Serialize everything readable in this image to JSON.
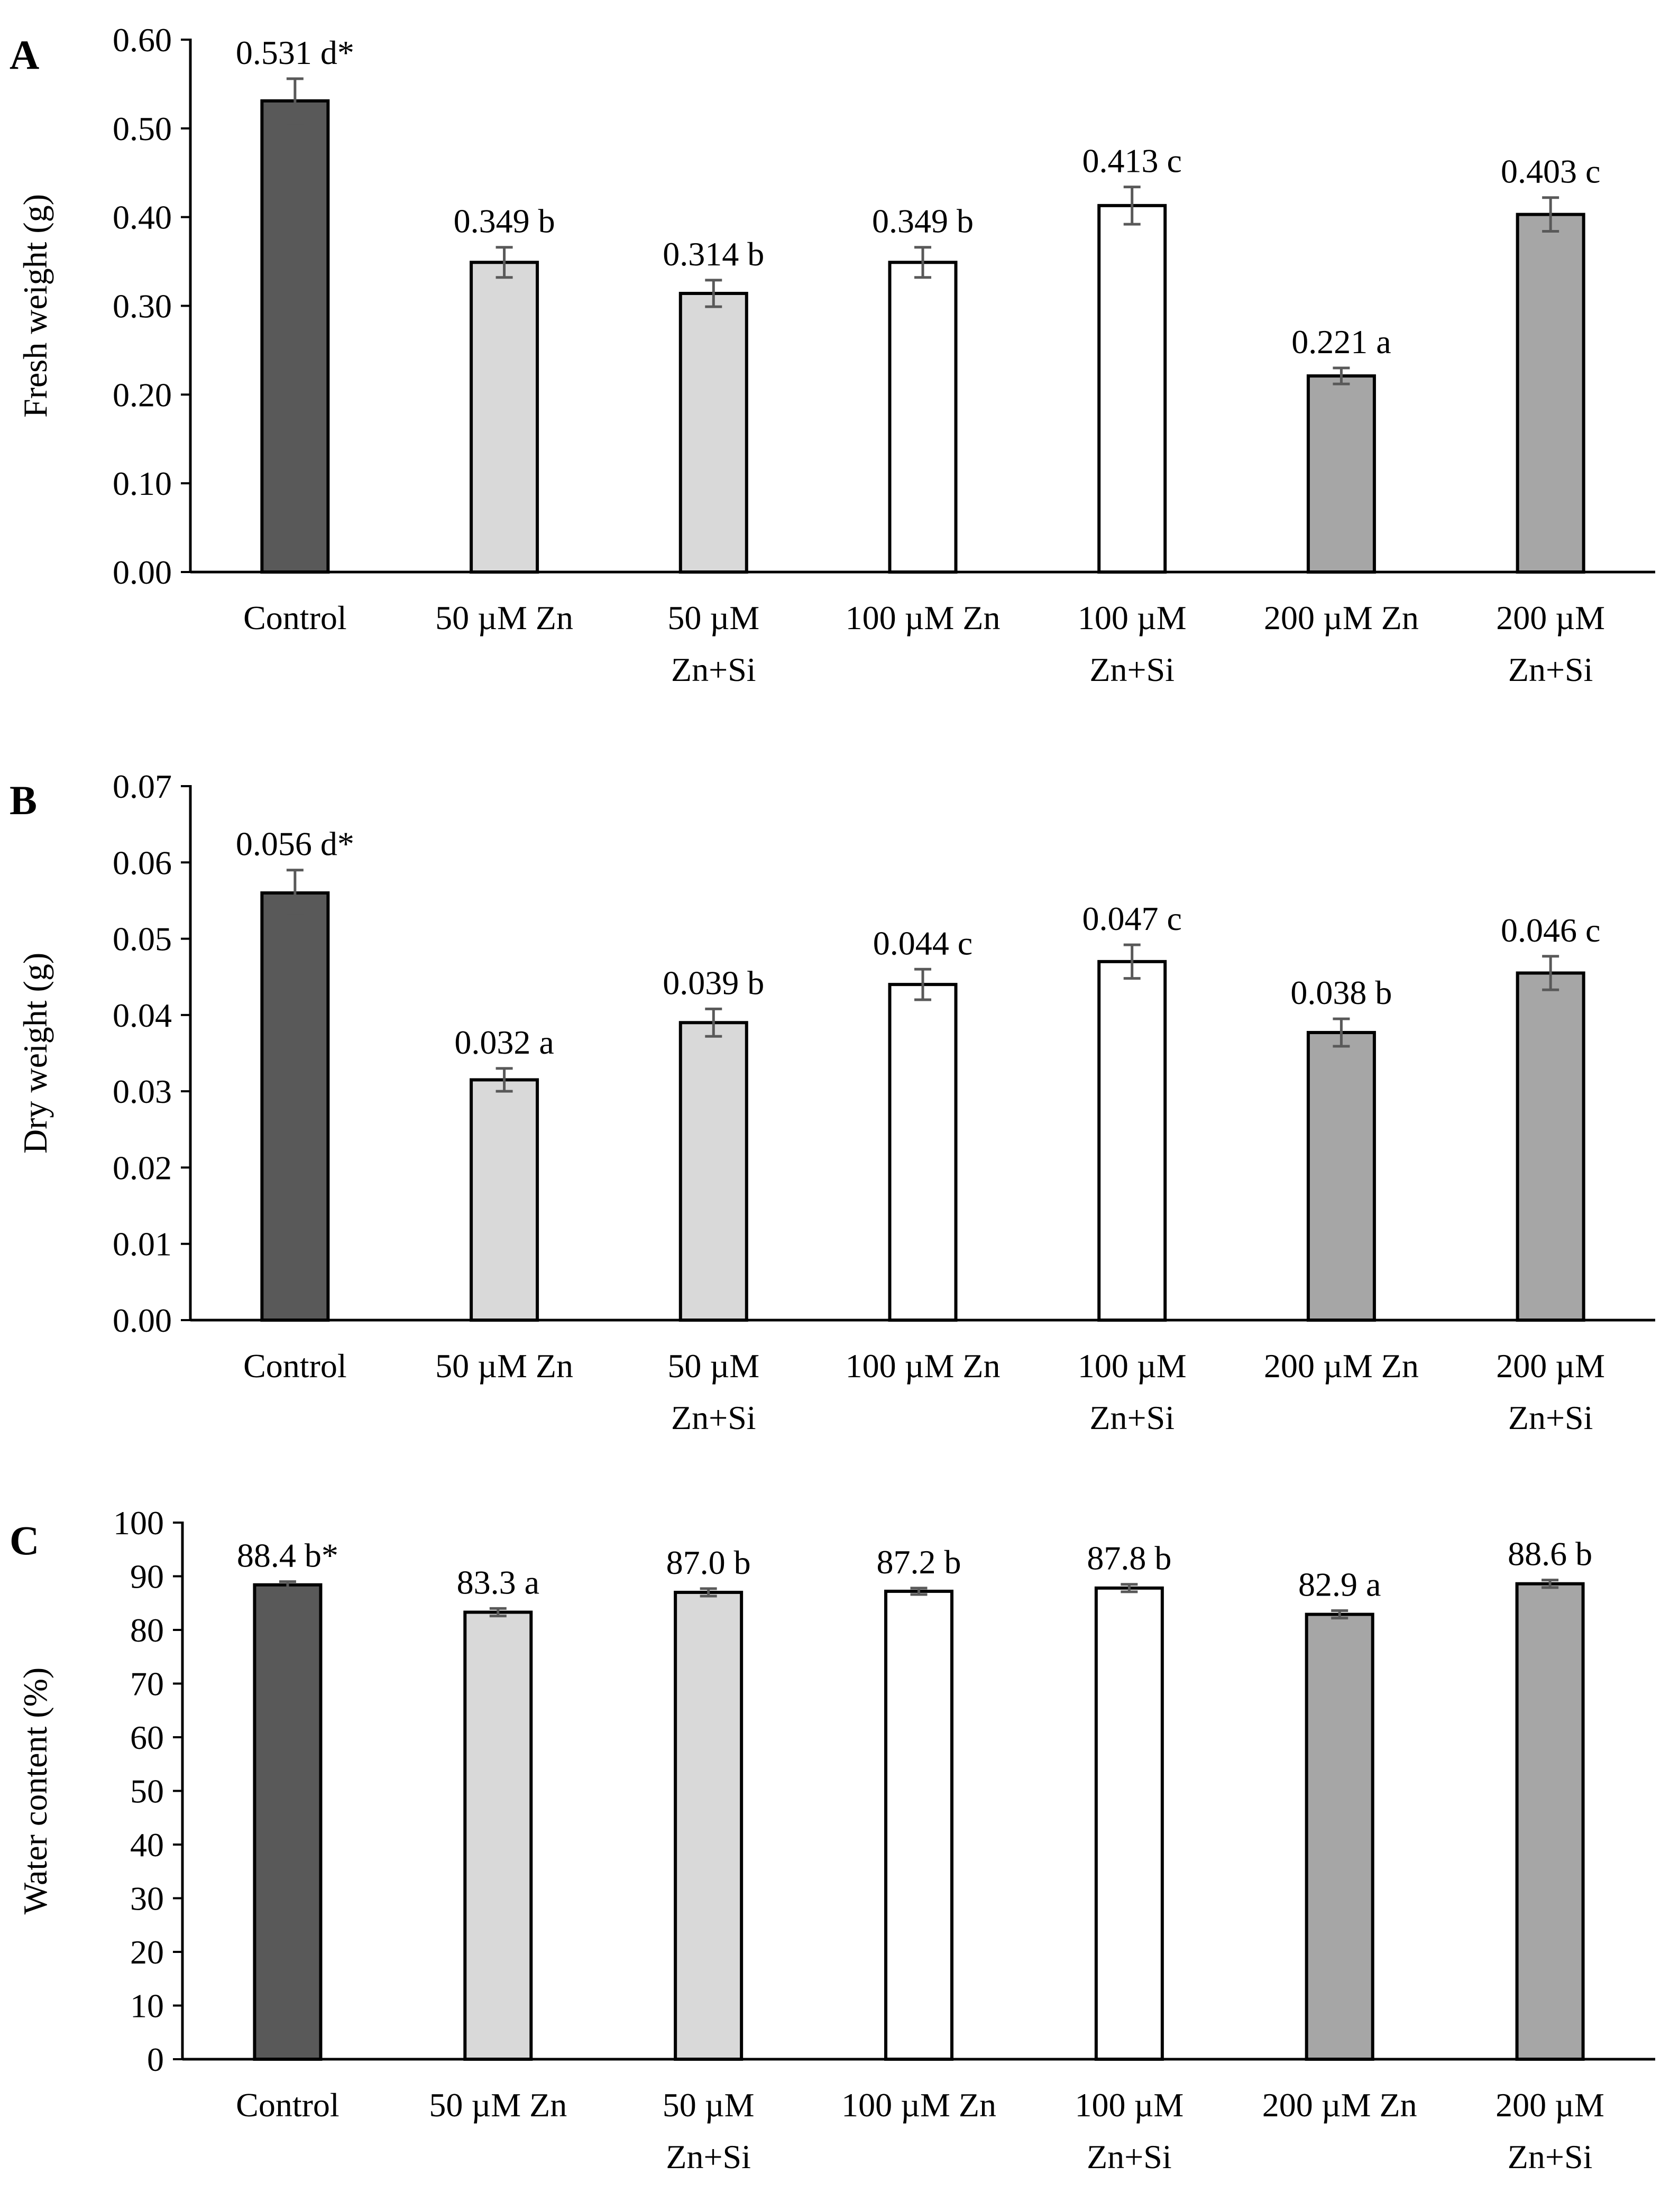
{
  "figure": {
    "colors": {
      "control": "#595959",
      "zn": "#d9d9d9",
      "znsi_100": "#ffffff",
      "zn_200": "#a6a6a6",
      "error_bar": "#595959",
      "axis": "#000000"
    }
  },
  "chart_data": [
    {
      "panel": "A",
      "type": "bar",
      "ylabel": "Fresh weight (g)",
      "xlabel": "",
      "ylim": [
        0,
        0.6
      ],
      "yticks": [
        "0.00",
        "0.10",
        "0.20",
        "0.30",
        "0.40",
        "0.50",
        "0.60"
      ],
      "categories": [
        [
          "Control"
        ],
        [
          "50 µM Zn"
        ],
        [
          "50 µM",
          "Zn+Si"
        ],
        [
          "100 µM Zn"
        ],
        [
          "100 µM",
          "Zn+Si"
        ],
        [
          "200 µM Zn"
        ],
        [
          "200 µM",
          "Zn+Si"
        ]
      ],
      "values": [
        0.531,
        0.349,
        0.314,
        0.349,
        0.413,
        0.221,
        0.403
      ],
      "errors": [
        0.025,
        0.017,
        0.015,
        0.017,
        0.021,
        0.009,
        0.019
      ],
      "labels": [
        "0.531 d*",
        "0.349 b",
        "0.314 b",
        "0.349 b",
        "0.413 c",
        "0.221 a",
        "0.403 c"
      ],
      "bar_colors": [
        "control",
        "zn",
        "zn",
        "znsi_100",
        "znsi_100",
        "zn_200",
        "zn_200"
      ]
    },
    {
      "panel": "B",
      "type": "bar",
      "ylabel": "Dry weight (g)",
      "xlabel": "",
      "ylim": [
        0,
        0.07
      ],
      "yticks": [
        "0.00",
        "0.01",
        "0.02",
        "0.03",
        "0.04",
        "0.05",
        "0.06",
        "0.07"
      ],
      "categories": [
        [
          "Control"
        ],
        [
          "50 µM Zn"
        ],
        [
          "50 µM",
          "Zn+Si"
        ],
        [
          "100 µM Zn"
        ],
        [
          "100 µM",
          "Zn+Si"
        ],
        [
          "200 µM Zn"
        ],
        [
          "200 µM",
          "Zn+Si"
        ]
      ],
      "values": [
        0.056,
        0.0315,
        0.039,
        0.044,
        0.047,
        0.0377,
        0.0455
      ],
      "errors": [
        0.003,
        0.0015,
        0.0018,
        0.002,
        0.0022,
        0.0018,
        0.0022
      ],
      "labels": [
        "0.056 d*",
        "0.032 a",
        "0.039 b",
        "0.044 c",
        "0.047 c",
        "0.038 b",
        "0.046 c"
      ],
      "bar_colors": [
        "control",
        "zn",
        "zn",
        "znsi_100",
        "znsi_100",
        "zn_200",
        "zn_200"
      ]
    },
    {
      "panel": "C",
      "type": "bar",
      "ylabel": "Water content (%)",
      "xlabel": "",
      "ylim": [
        0,
        100
      ],
      "yticks": [
        "0",
        "10",
        "20",
        "30",
        "40",
        "50",
        "60",
        "70",
        "80",
        "90",
        "100"
      ],
      "categories": [
        [
          "Control"
        ],
        [
          "50 µM Zn"
        ],
        [
          "50 µM",
          "Zn+Si"
        ],
        [
          "100 µM Zn"
        ],
        [
          "100 µM",
          "Zn+Si"
        ],
        [
          "200 µM Zn"
        ],
        [
          "200 µM",
          "Zn+Si"
        ]
      ],
      "values": [
        88.4,
        83.3,
        87.0,
        87.2,
        87.8,
        82.9,
        88.6
      ],
      "errors": [
        0.6,
        0.7,
        0.7,
        0.6,
        0.7,
        0.7,
        0.7
      ],
      "labels": [
        "88.4 b*",
        "83.3 a",
        "87.0 b",
        "87.2 b",
        "87.8 b",
        "82.9 a",
        "88.6 b"
      ],
      "bar_colors": [
        "control",
        "zn",
        "zn",
        "znsi_100",
        "znsi_100",
        "zn_200",
        "zn_200"
      ]
    }
  ]
}
